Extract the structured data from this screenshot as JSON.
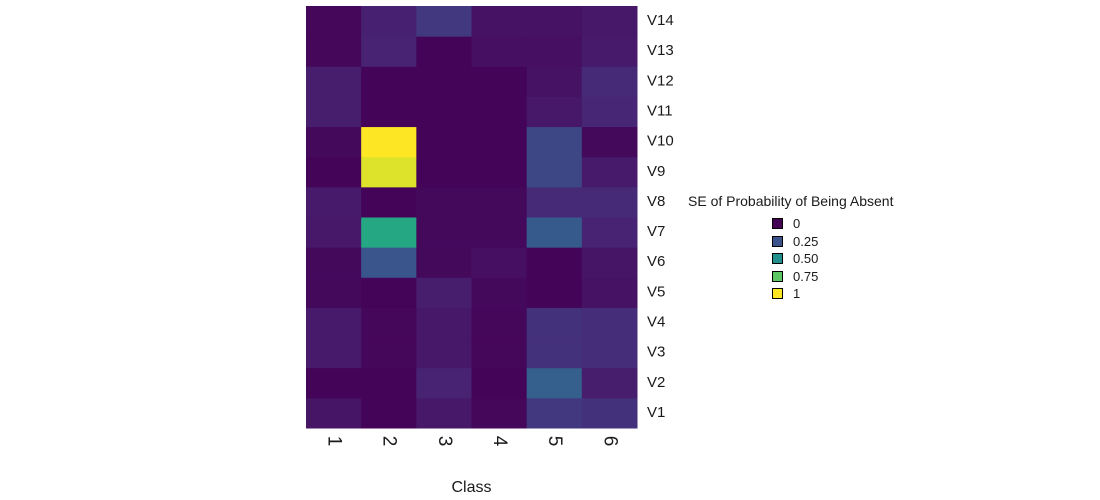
{
  "chart_data": {
    "type": "heatmap",
    "title": "",
    "xlabel": "Class",
    "ylabel": "",
    "x_categories": [
      "1",
      "2",
      "3",
      "4",
      "5",
      "6"
    ],
    "y_categories": [
      "V1",
      "V2",
      "V3",
      "V4",
      "V5",
      "V6",
      "V7",
      "V8",
      "V9",
      "V10",
      "V11",
      "V12",
      "V13",
      "V14"
    ],
    "value_range": [
      0,
      1
    ],
    "colormap": "viridis",
    "values": [
      [
        0.07,
        0.01,
        0.08,
        0.02,
        0.18,
        0.16
      ],
      [
        0.01,
        0.01,
        0.12,
        0.01,
        0.3,
        0.1
      ],
      [
        0.09,
        0.02,
        0.08,
        0.02,
        0.16,
        0.15
      ],
      [
        0.09,
        0.02,
        0.08,
        0.02,
        0.16,
        0.15
      ],
      [
        0.03,
        0.01,
        0.1,
        0.03,
        0.01,
        0.06
      ],
      [
        0.03,
        0.26,
        0.03,
        0.05,
        0.01,
        0.07
      ],
      [
        0.08,
        0.6,
        0.03,
        0.03,
        0.28,
        0.12
      ],
      [
        0.09,
        0.01,
        0.03,
        0.03,
        0.14,
        0.14
      ],
      [
        0.01,
        0.95,
        0.01,
        0.01,
        0.22,
        0.09
      ],
      [
        0.03,
        1.0,
        0.01,
        0.01,
        0.22,
        0.03
      ],
      [
        0.1,
        0.01,
        0.01,
        0.01,
        0.08,
        0.13
      ],
      [
        0.1,
        0.01,
        0.01,
        0.01,
        0.06,
        0.14
      ],
      [
        0.02,
        0.12,
        0.01,
        0.05,
        0.05,
        0.09
      ],
      [
        0.02,
        0.11,
        0.18,
        0.06,
        0.06,
        0.08
      ]
    ],
    "legend": {
      "title": "SE of Probability of Being Absent",
      "items": [
        {
          "label": "0",
          "color": "#440154"
        },
        {
          "label": "0.25",
          "color": "#3B528B"
        },
        {
          "label": "0.50",
          "color": "#21908C"
        },
        {
          "label": "0.75",
          "color": "#5DC863"
        },
        {
          "label": "1",
          "color": "#FDE725"
        }
      ],
      "placement": "right"
    },
    "grid": false
  }
}
